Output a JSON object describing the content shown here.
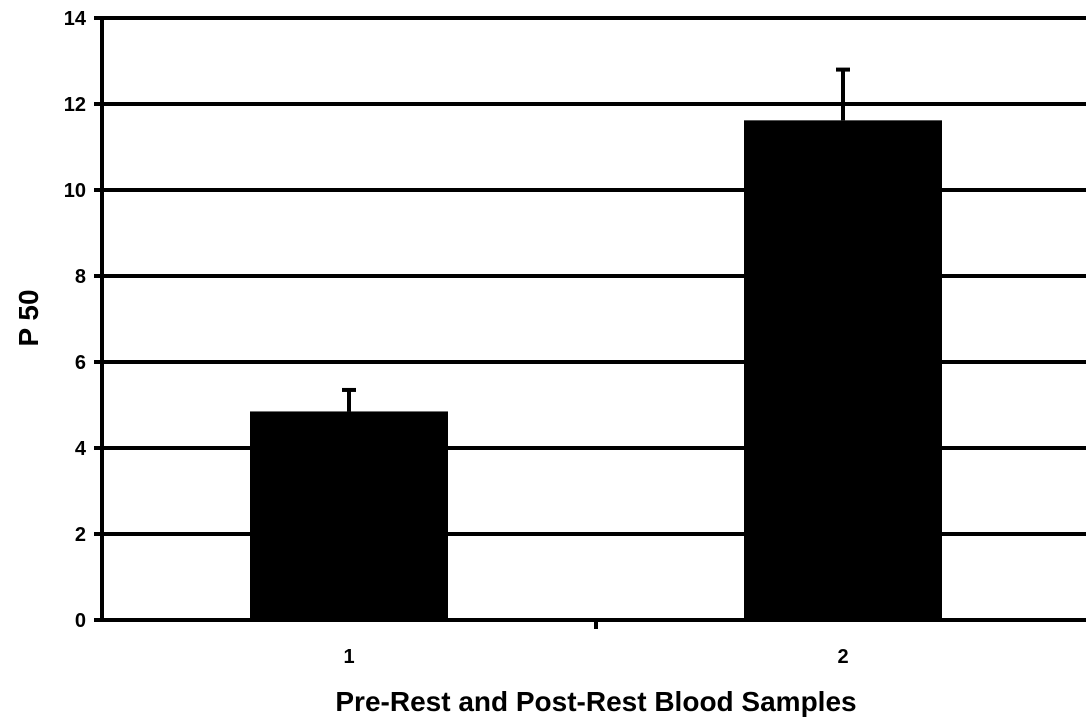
{
  "chart_data": {
    "type": "bar",
    "title": "",
    "xlabel": "Pre-Rest and Post-Rest Blood Samples",
    "ylabel": "P 50",
    "categories": [
      "1",
      "2"
    ],
    "values": [
      4.85,
      11.62
    ],
    "error_plus": [
      0.5,
      1.18
    ],
    "ylim": [
      0,
      14
    ],
    "yticks": [
      0,
      2,
      4,
      6,
      8,
      10,
      12,
      14
    ],
    "ytick_labels": [
      "0",
      "2",
      "4",
      "6",
      "8",
      "10",
      "12",
      "14"
    ],
    "grid": true,
    "legend": "none",
    "colors": {
      "bar": "#000000",
      "gridline": "#000000",
      "axis": "#000000",
      "background": "#ffffff"
    }
  }
}
